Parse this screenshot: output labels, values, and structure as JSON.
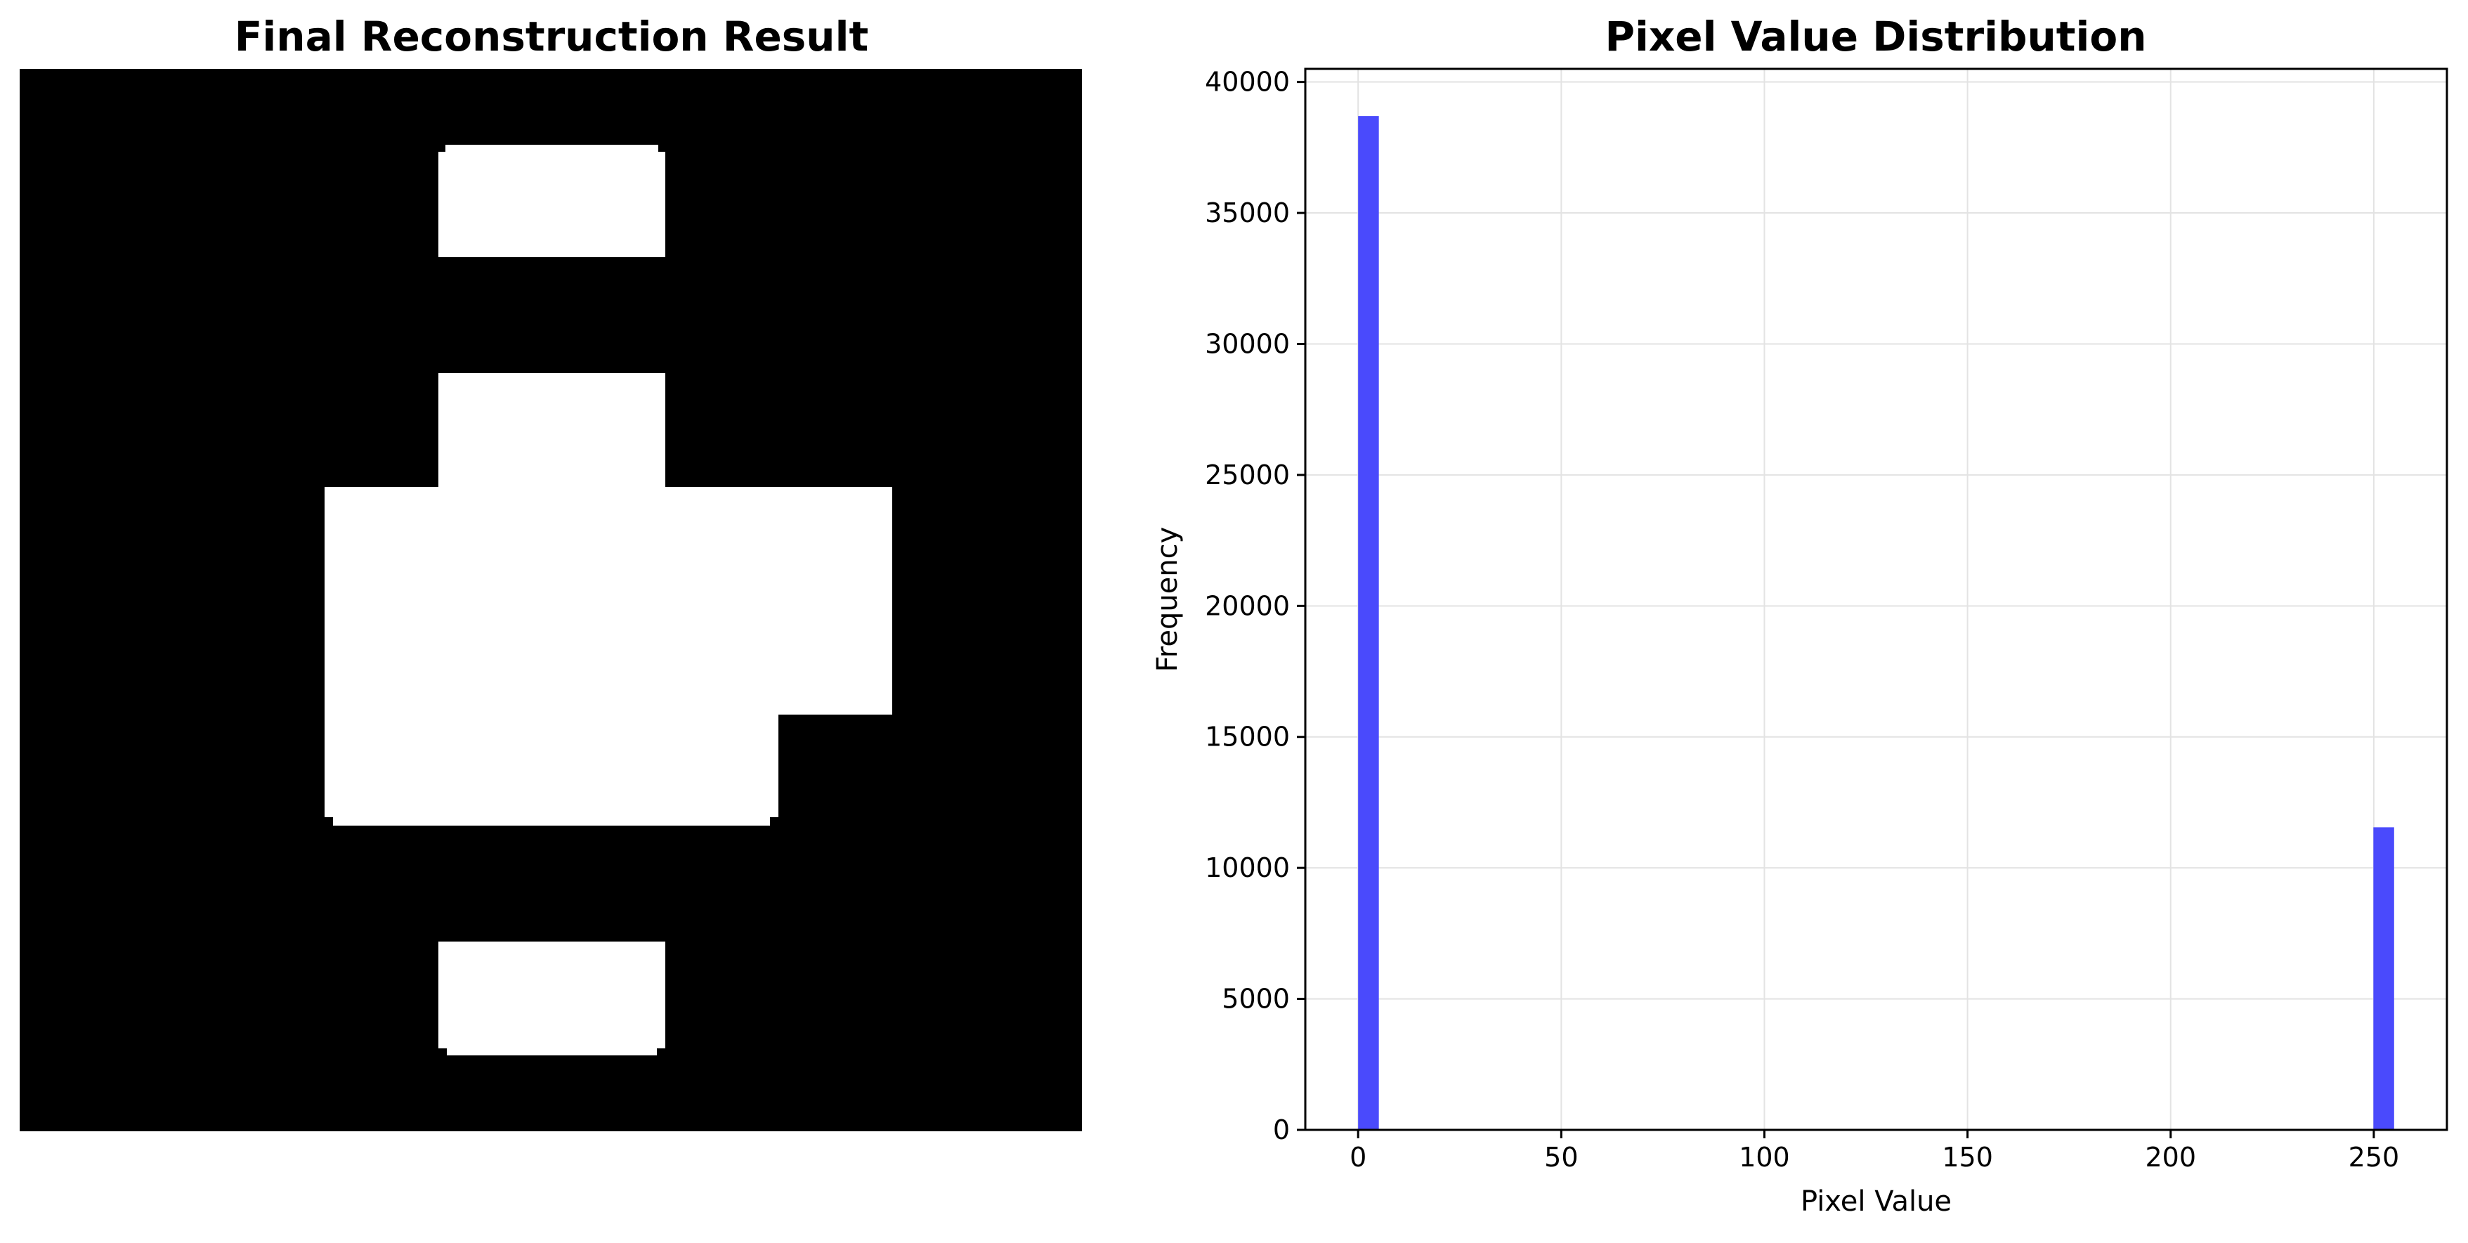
{
  "left_panel": {
    "title": "Final Reconstruction Result",
    "image_description_colors": {
      "background": "#000000",
      "foreground": "#ffffff"
    }
  },
  "chart_data": {
    "type": "bar",
    "title": "Pixel Value Distribution",
    "xlabel": "Pixel Value",
    "ylabel": "Frequency",
    "xlim": [
      -13,
      268
    ],
    "ylim": [
      0,
      40500
    ],
    "xticks": [
      0,
      50,
      100,
      150,
      200,
      250
    ],
    "yticks": [
      0,
      5000,
      10000,
      15000,
      20000,
      25000,
      30000,
      35000,
      40000
    ],
    "bar_color": "#4a4afc",
    "bins": [
      {
        "x0": 0,
        "x1": 5.1,
        "value": 38700
      },
      {
        "x0": 249.9,
        "x1": 255,
        "value": 11550
      }
    ],
    "grid": true
  }
}
